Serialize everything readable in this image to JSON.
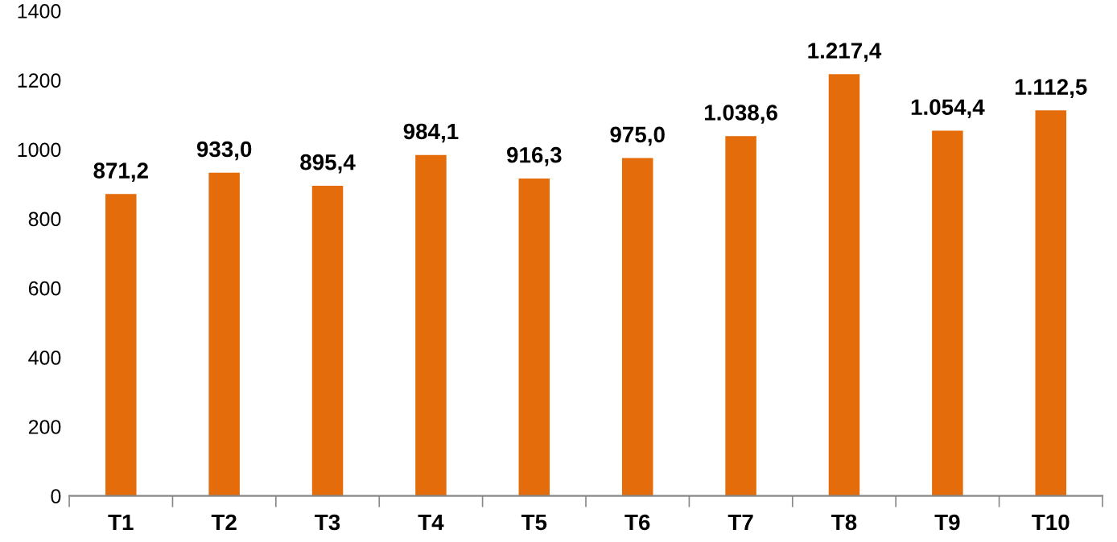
{
  "chart_data": {
    "type": "bar",
    "categories": [
      "T1",
      "T2",
      "T3",
      "T4",
      "T5",
      "T6",
      "T7",
      "T8",
      "T9",
      "T10"
    ],
    "values": [
      871.2,
      933.0,
      895.4,
      984.1,
      916.3,
      975.0,
      1038.6,
      1217.4,
      1054.4,
      1112.5
    ],
    "value_labels": [
      "871,2",
      "933,0",
      "895,4",
      "984,1",
      "916,3",
      "975,0",
      "1.038,6",
      "1.217,4",
      "1.054,4",
      "1.112,5"
    ],
    "color": "#e46c0a",
    "ylim": [
      0,
      1400
    ],
    "yticks": [
      0,
      200,
      400,
      600,
      800,
      1000,
      1200,
      1400
    ],
    "grid": false,
    "legend": false
  }
}
